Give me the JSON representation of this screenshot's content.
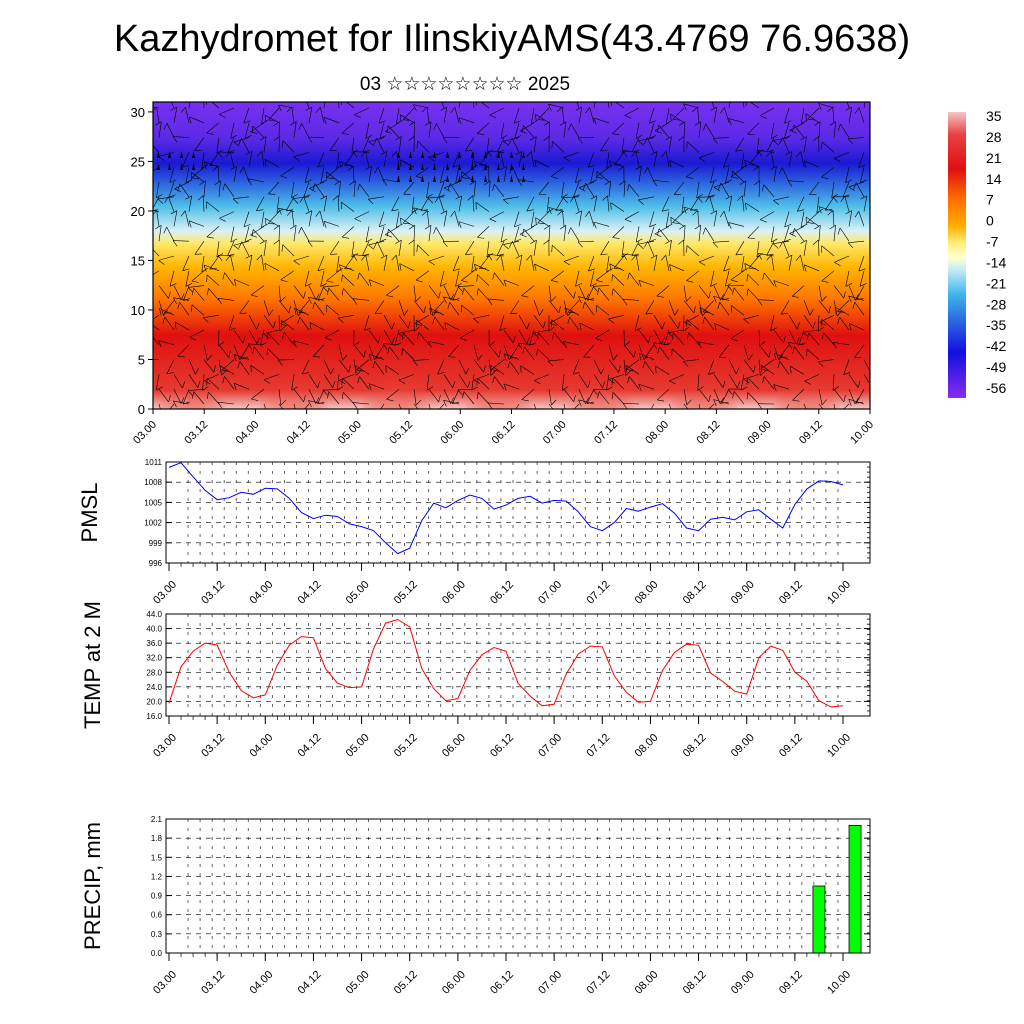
{
  "title": "Kazhydromet for IlinskiyAMS(43.4769 76.9638)",
  "subtitle": "03 ☆☆☆☆☆☆☆☆ 2025",
  "time_labels": [
    "03.00",
    "03.12",
    "04.00",
    "04.12",
    "05.00",
    "05.12",
    "06.00",
    "06.12",
    "07.00",
    "07.12",
    "08.00",
    "08.12",
    "09.00",
    "09.12",
    "10.00"
  ],
  "chart_data": [
    {
      "type": "heatmap",
      "name": "temperature-cross-section",
      "x_ticks": [
        "03.00",
        "03.12",
        "04.00",
        "04.12",
        "05.00",
        "05.12",
        "06.00",
        "06.12",
        "07.00",
        "07.12",
        "08.00",
        "08.12",
        "09.00",
        "09.12",
        "10.00"
      ],
      "y_ticks": [
        "0",
        "5",
        "10",
        "15",
        "20",
        "25",
        "30"
      ],
      "ylim": [
        0,
        31
      ],
      "colorbar_labels": [
        "35",
        "28",
        "21",
        "14",
        "7",
        "0",
        "-7",
        "-14",
        "-21",
        "-28",
        "-35",
        "-42",
        "-49",
        "-56"
      ],
      "overlay": "wind barbs"
    },
    {
      "type": "line",
      "name": "pmsl",
      "ylabel": "PMSL",
      "color": "#0000ff",
      "ylim": [
        996,
        1011
      ],
      "y_ticks": [
        "1011",
        "1008",
        "1005",
        "1002",
        "999",
        "996"
      ],
      "x_ticks": [
        "03.00",
        "03.12",
        "04.00",
        "04.12",
        "05.00",
        "05.12",
        "06.00",
        "06.12",
        "07.00",
        "07.12",
        "08.00",
        "08.12",
        "09.00",
        "09.12",
        "10.00"
      ],
      "values": [
        1010.2,
        1010.9,
        1008.8,
        1006.8,
        1005.4,
        1005.7,
        1006.5,
        1006.2,
        1007.1,
        1007.0,
        1005.6,
        1003.5,
        1002.6,
        1003.1,
        1002.9,
        1001.8,
        1001.4,
        1000.8,
        999.0,
        997.4,
        998.2,
        1002.3,
        1004.9,
        1004.2,
        1005.3,
        1006.1,
        1005.6,
        1004.0,
        1004.6,
        1005.6,
        1005.9,
        1004.9,
        1005.3,
        1005.2,
        1003.6,
        1001.4,
        1000.8,
        1002.0,
        1004.1,
        1003.7,
        1004.3,
        1004.8,
        1003.4,
        1001.2,
        1000.8,
        1002.5,
        1002.8,
        1002.4,
        1003.6,
        1003.9,
        1002.5,
        1001.2,
        1004.7,
        1007.0,
        1008.2,
        1008.1,
        1007.6
      ]
    },
    {
      "type": "line",
      "name": "temp-2m",
      "ylabel": "TEMP at 2 M",
      "color": "#ff0000",
      "ylim": [
        16,
        44
      ],
      "y_ticks": [
        "44.0",
        "40.0",
        "36.0",
        "32.0",
        "28.0",
        "24.0",
        "20.0",
        "16.0"
      ],
      "x_ticks": [
        "03.00",
        "03.12",
        "04.00",
        "04.12",
        "05.00",
        "05.12",
        "06.00",
        "06.12",
        "07.00",
        "07.12",
        "08.00",
        "08.12",
        "09.00",
        "09.12",
        "10.00"
      ],
      "values": [
        19.5,
        29.5,
        33.8,
        36.0,
        35.5,
        28.0,
        23.0,
        21.0,
        21.8,
        30.0,
        35.5,
        37.8,
        37.5,
        29.0,
        25.0,
        23.8,
        24.0,
        34.5,
        41.5,
        42.5,
        40.5,
        29.0,
        23.5,
        20.2,
        20.8,
        28.5,
        32.8,
        34.8,
        33.8,
        25.0,
        21.5,
        18.8,
        19.2,
        27.5,
        33.0,
        35.2,
        35.0,
        27.0,
        22.5,
        19.8,
        20.0,
        28.5,
        33.5,
        35.7,
        35.4,
        27.8,
        25.5,
        22.8,
        22.0,
        32.0,
        35.2,
        34.0,
        28.0,
        25.5,
        20.2,
        18.5,
        18.8
      ]
    },
    {
      "type": "bar",
      "name": "precip",
      "ylabel": "PRECIP, mm",
      "color": "#00ff00",
      "ylim": [
        0,
        2.1
      ],
      "y_ticks": [
        "2.1",
        "1.8",
        "1.5",
        "1.2",
        "0.9",
        "0.6",
        "0.3",
        "0.0"
      ],
      "x_ticks": [
        "03.00",
        "03.12",
        "04.00",
        "04.12",
        "05.00",
        "05.12",
        "06.00",
        "06.12",
        "07.00",
        "07.12",
        "08.00",
        "08.12",
        "09.00",
        "09.12",
        "10.00"
      ],
      "bars": [
        {
          "t": 54,
          "value": 1.05
        },
        {
          "t": 57,
          "value": 2.0
        }
      ]
    }
  ]
}
